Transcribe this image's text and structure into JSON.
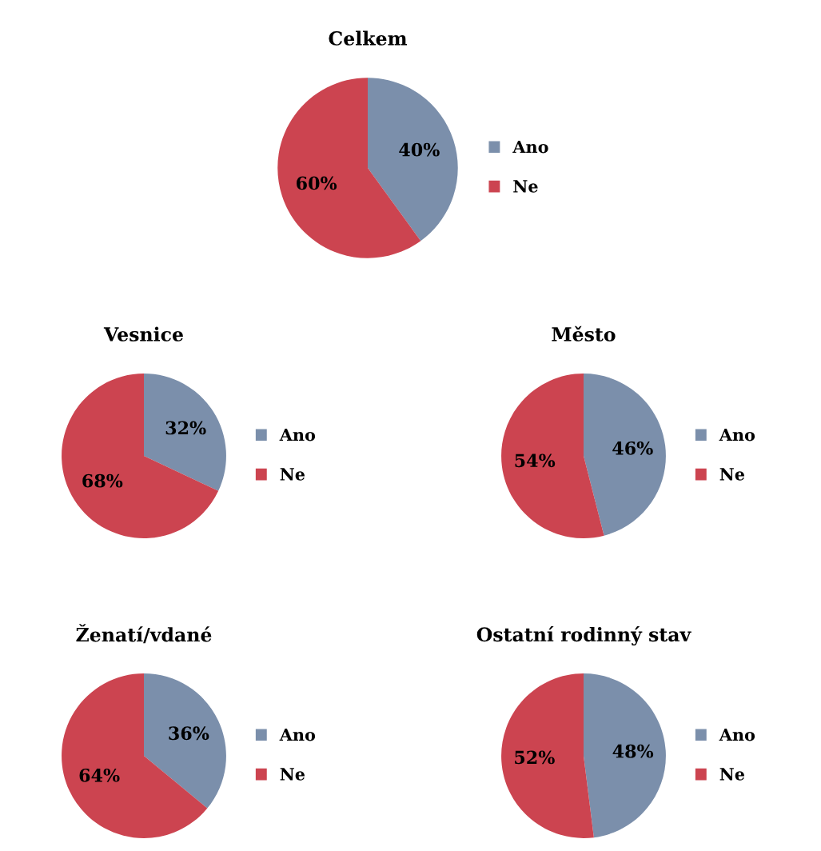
{
  "chart_data": [
    {
      "type": "pie",
      "title": "Celkem",
      "categories": [
        "Ano",
        "Ne"
      ],
      "values": [
        40,
        60
      ],
      "colors": [
        "#7b8fab",
        "#cc4450"
      ],
      "value_labels": [
        "40%",
        "60%"
      ],
      "legend": "right"
    },
    {
      "type": "pie",
      "title": "Vesnice",
      "categories": [
        "Ano",
        "Ne"
      ],
      "values": [
        32,
        68
      ],
      "colors": [
        "#7b8fab",
        "#cc4450"
      ],
      "value_labels": [
        "32%",
        "68%"
      ],
      "legend": "right"
    },
    {
      "type": "pie",
      "title": "Město",
      "categories": [
        "Ano",
        "Ne"
      ],
      "values": [
        46,
        54
      ],
      "colors": [
        "#7b8fab",
        "#cc4450"
      ],
      "value_labels": [
        "46%",
        "54%"
      ],
      "legend": "right"
    },
    {
      "type": "pie",
      "title": "Ženatí/vdané",
      "categories": [
        "Ano",
        "Ne"
      ],
      "values": [
        36,
        64
      ],
      "colors": [
        "#7b8fab",
        "#cc4450"
      ],
      "value_labels": [
        "36%",
        "64%"
      ],
      "legend": "right"
    },
    {
      "type": "pie",
      "title": "Ostatní rodinný stav",
      "categories": [
        "Ano",
        "Ne"
      ],
      "values": [
        48,
        52
      ],
      "colors": [
        "#7b8fab",
        "#cc4450"
      ],
      "value_labels": [
        "48%",
        "52%"
      ],
      "legend": "right"
    }
  ]
}
